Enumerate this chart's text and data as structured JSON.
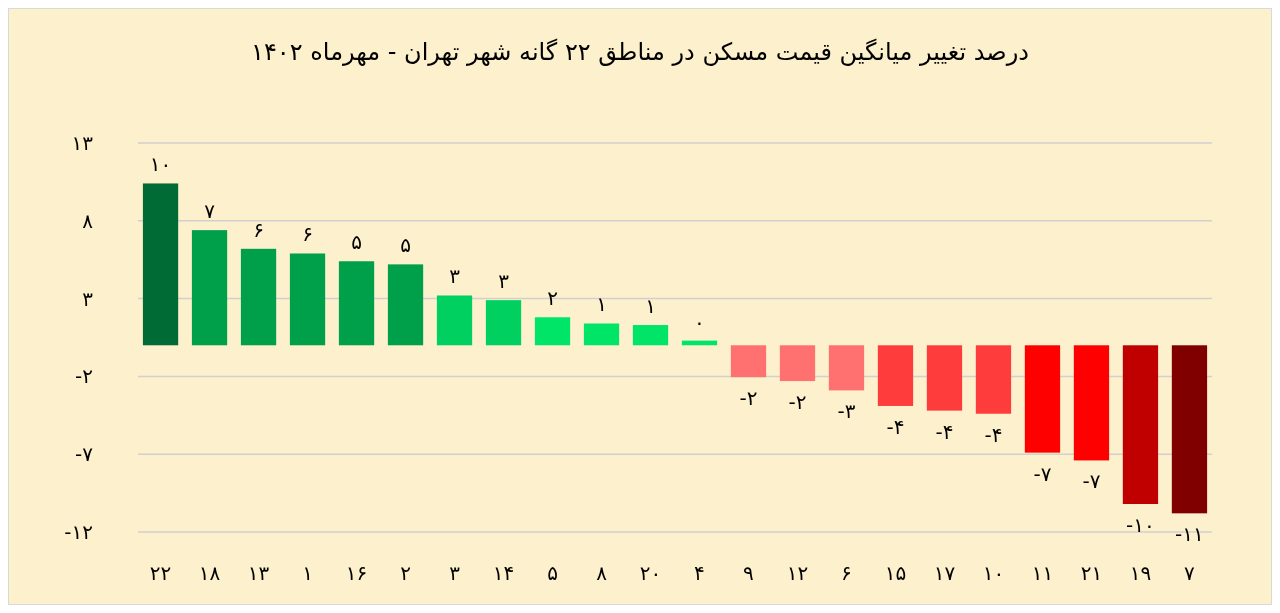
{
  "chart_data": {
    "type": "bar",
    "title": "درصد تغییر میانگین قیمت مسکن در مناطق ۲۲ گانه شهر تهران - مهرماه ۱۴۰۲",
    "categories": [
      "۲۲",
      "۱۸",
      "۱۳",
      "۱",
      "۱۶",
      "۲",
      "۳",
      "۱۴",
      "۵",
      "۸",
      "۲۰",
      "۴",
      "۹",
      "۱۲",
      "۶",
      "۱۵",
      "۱۷",
      "۱۰",
      "۱۱",
      "۲۱",
      "۱۹",
      "۷"
    ],
    "values": [
      10.4,
      7.4,
      6.2,
      5.9,
      5.4,
      5.2,
      3.2,
      2.9,
      1.8,
      1.4,
      1.3,
      0.3,
      -2.05,
      -2.3,
      -2.9,
      -3.9,
      -4.2,
      -4.4,
      -6.9,
      -7.4,
      -10.2,
      -10.8
    ],
    "value_labels": [
      "۱۰",
      "۷",
      "۶",
      "۶",
      "۵",
      "۵",
      "۳",
      "۳",
      "۲",
      "۱",
      "۱",
      "۰",
      "-۲",
      "-۲",
      "-۳",
      "-۴",
      "-۴",
      "-۴",
      "-۷",
      "-۷",
      "-۱۰",
      "-۱۱"
    ],
    "colors": [
      "#006b35",
      "#00a04a",
      "#00a04a",
      "#00a04a",
      "#00a04a",
      "#00a04a",
      "#00d060",
      "#00d060",
      "#00e468",
      "#00e468",
      "#00e468",
      "#00e468",
      "#ff7070",
      "#ff7070",
      "#ff7070",
      "#ff3c3c",
      "#ff3c3c",
      "#ff3c3c",
      "#ff0000",
      "#ff0000",
      "#c00000",
      "#800000"
    ],
    "ylim": [
      -12,
      13
    ],
    "yticks": [
      {
        "value": 13,
        "label": "۱۳"
      },
      {
        "value": 8,
        "label": "۸"
      },
      {
        "value": 3,
        "label": "۳"
      },
      {
        "value": -2,
        "label": "-۲"
      },
      {
        "value": -7,
        "label": "-۷"
      },
      {
        "value": -12,
        "label": "-۱۲"
      }
    ],
    "grid": "y"
  }
}
